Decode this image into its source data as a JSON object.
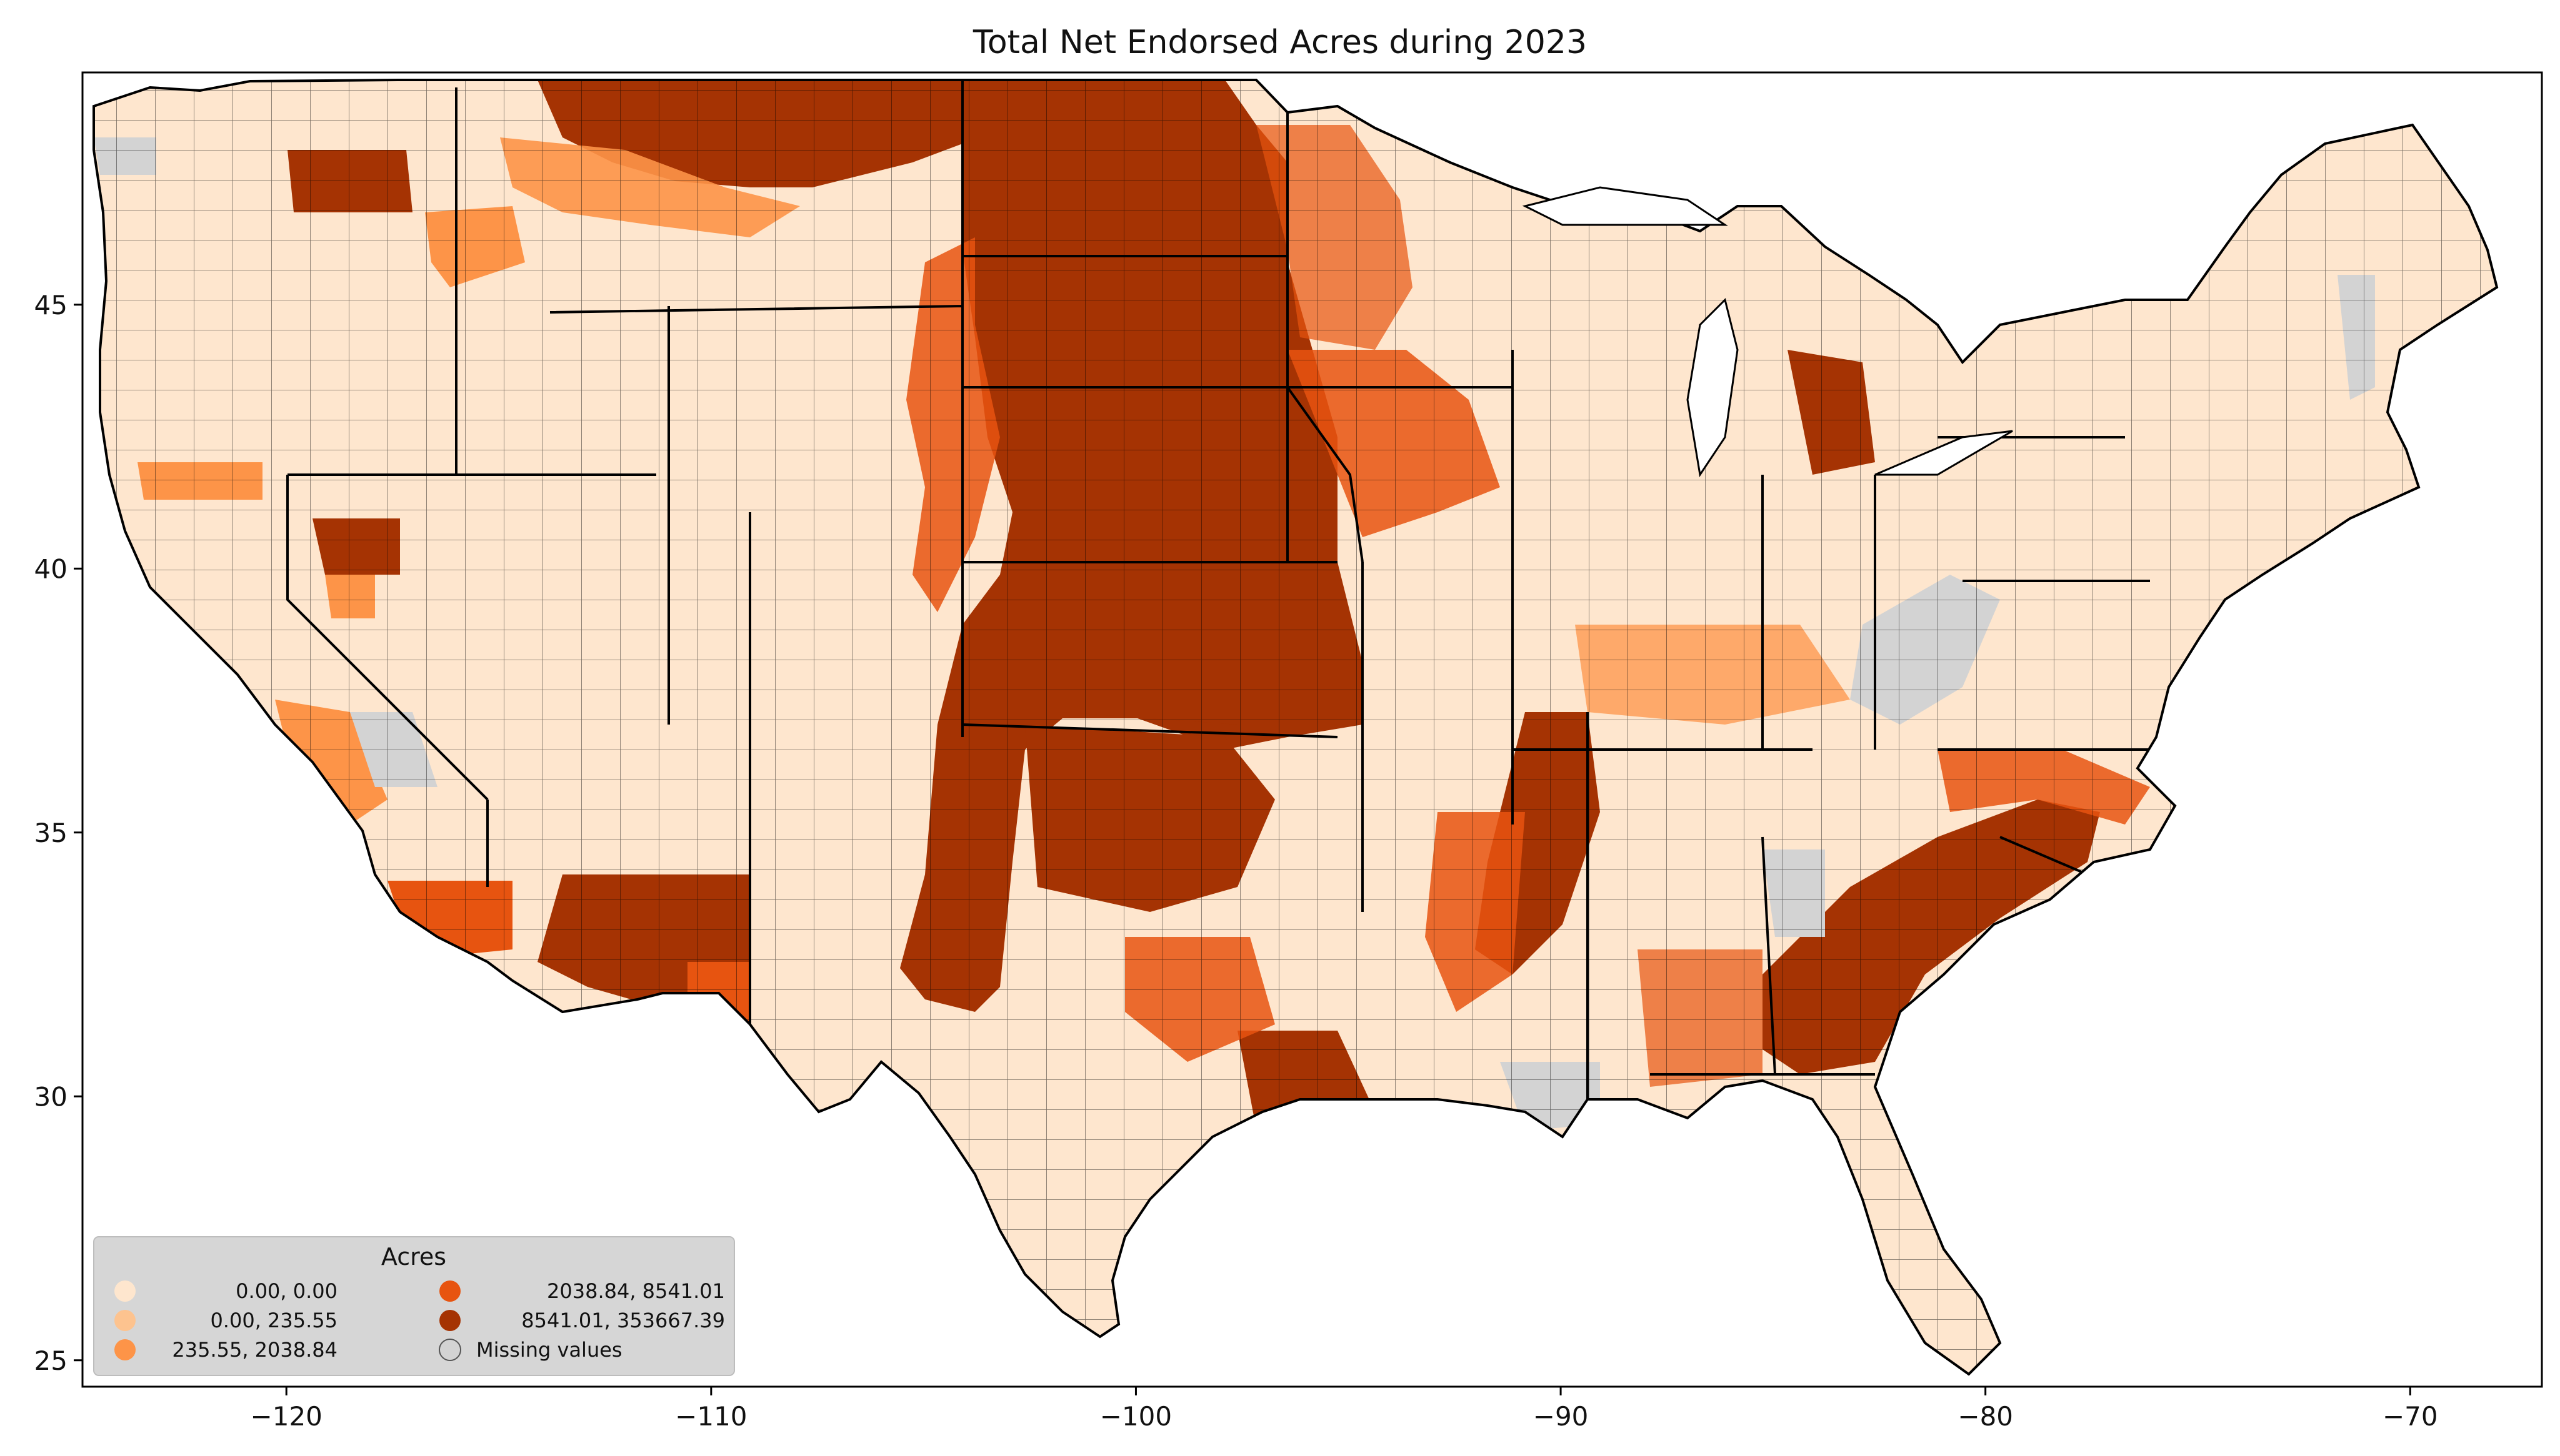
{
  "title": "Total Net Endorsed Acres during 2023",
  "axes": {
    "x_ticks": [
      -120,
      -110,
      -100,
      -90,
      -80,
      -70
    ],
    "x_tick_labels": [
      "−120",
      "−110",
      "−100",
      "−90",
      "−80",
      "−70"
    ],
    "y_ticks": [
      25,
      30,
      35,
      40,
      45
    ],
    "y_tick_labels": [
      "25",
      "30",
      "35",
      "40",
      "45"
    ],
    "xlim": [
      -124.8,
      -66.9
    ],
    "ylim": [
      24.5,
      49.4
    ]
  },
  "legend": {
    "title": "Acres",
    "placement": "lower-left",
    "entries": [
      {
        "label": "0.00,      0.00",
        "color": "#fee6ce"
      },
      {
        "label": "0.00,    235.55",
        "color": "#fdc38f"
      },
      {
        "label": "235.55,   2038.84",
        "color": "#fd9448"
      },
      {
        "label": "2038.84,   8541.01",
        "color": "#e75410"
      },
      {
        "label": "8541.01, 353667.39",
        "color": "#a53303"
      },
      {
        "label": "Missing values",
        "color": "#d3d3d3"
      }
    ]
  },
  "colors": {
    "class1": "#fee6ce",
    "class2": "#fdc38f",
    "class3": "#fd9448",
    "class4": "#e75410",
    "class5": "#a53303",
    "missing": "#d3d3d3",
    "border": "#000000"
  }
}
